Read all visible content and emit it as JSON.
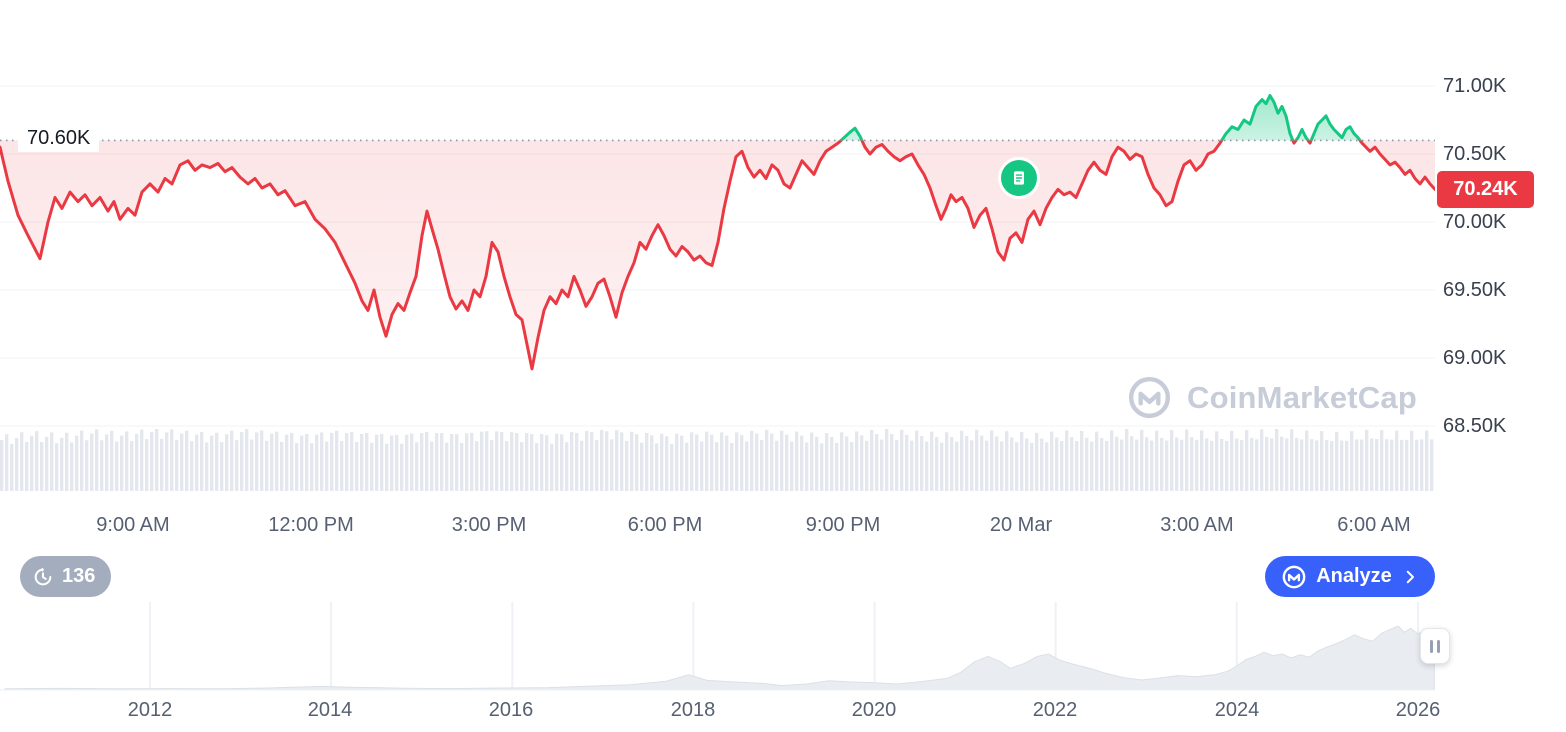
{
  "branding": {
    "watermark": "CoinMarketCap"
  },
  "toolbar": {
    "history_count": "136",
    "analyze_label": "Analyze"
  },
  "colors": {
    "red": "#ea3943",
    "green": "#16c784",
    "blue": "#3861fb",
    "badge_gray": "#a4adbd",
    "volume_gray": "#e4e8ee",
    "nav_fill": "#e9edf1",
    "axis_text": "#566072",
    "watermark_gray": "#c6ccd8"
  },
  "chart_data": [
    {
      "type": "line",
      "name": "price-intraday",
      "title": "",
      "xlabel": "",
      "ylabel": "",
      "grid": "horizontal-faint",
      "baseline_value": 70.6,
      "baseline_label": "70.60K",
      "last_value": 70.24,
      "last_label": "70.24K",
      "ylim": [
        68.35,
        71.15
      ],
      "y_ticks": [
        "71.00K",
        "70.50K",
        "70.00K",
        "69.50K",
        "69.00K",
        "68.50K"
      ],
      "y_tick_values": [
        71.0,
        70.5,
        70.0,
        69.5,
        69.0,
        68.5
      ],
      "x_ticks": [
        "9:00 AM",
        "12:00 PM",
        "3:00 PM",
        "6:00 PM",
        "9:00 PM",
        "20 Mar",
        "3:00 AM",
        "6:00 AM"
      ],
      "points": [
        [
          0,
          70.55
        ],
        [
          8,
          70.3
        ],
        [
          18,
          70.05
        ],
        [
          28,
          69.9
        ],
        [
          40,
          69.73
        ],
        [
          48,
          70.0
        ],
        [
          55,
          70.18
        ],
        [
          62,
          70.1
        ],
        [
          70,
          70.22
        ],
        [
          78,
          70.15
        ],
        [
          85,
          70.2
        ],
        [
          92,
          70.12
        ],
        [
          100,
          70.18
        ],
        [
          108,
          70.08
        ],
        [
          114,
          70.15
        ],
        [
          120,
          70.02
        ],
        [
          128,
          70.1
        ],
        [
          135,
          70.05
        ],
        [
          142,
          70.22
        ],
        [
          150,
          70.28
        ],
        [
          158,
          70.22
        ],
        [
          165,
          70.32
        ],
        [
          172,
          70.28
        ],
        [
          180,
          70.42
        ],
        [
          188,
          70.45
        ],
        [
          195,
          70.38
        ],
        [
          202,
          70.42
        ],
        [
          210,
          70.4
        ],
        [
          218,
          70.43
        ],
        [
          225,
          70.37
        ],
        [
          232,
          70.4
        ],
        [
          240,
          70.33
        ],
        [
          248,
          70.28
        ],
        [
          255,
          70.32
        ],
        [
          262,
          70.25
        ],
        [
          270,
          70.28
        ],
        [
          278,
          70.2
        ],
        [
          285,
          70.23
        ],
        [
          295,
          70.12
        ],
        [
          305,
          70.15
        ],
        [
          315,
          70.02
        ],
        [
          325,
          69.95
        ],
        [
          335,
          69.85
        ],
        [
          345,
          69.7
        ],
        [
          355,
          69.55
        ],
        [
          362,
          69.42
        ],
        [
          368,
          69.35
        ],
        [
          374,
          69.5
        ],
        [
          380,
          69.3
        ],
        [
          386,
          69.16
        ],
        [
          392,
          69.32
        ],
        [
          398,
          69.4
        ],
        [
          404,
          69.35
        ],
        [
          410,
          69.48
        ],
        [
          416,
          69.6
        ],
        [
          422,
          69.9
        ],
        [
          427,
          70.08
        ],
        [
          432,
          69.95
        ],
        [
          438,
          69.8
        ],
        [
          444,
          69.62
        ],
        [
          450,
          69.45
        ],
        [
          456,
          69.36
        ],
        [
          462,
          69.42
        ],
        [
          468,
          69.35
        ],
        [
          474,
          69.5
        ],
        [
          480,
          69.45
        ],
        [
          486,
          69.6
        ],
        [
          492,
          69.85
        ],
        [
          498,
          69.78
        ],
        [
          504,
          69.6
        ],
        [
          510,
          69.45
        ],
        [
          516,
          69.32
        ],
        [
          522,
          69.28
        ],
        [
          527,
          69.1
        ],
        [
          532,
          68.92
        ],
        [
          538,
          69.15
        ],
        [
          544,
          69.35
        ],
        [
          550,
          69.45
        ],
        [
          556,
          69.4
        ],
        [
          562,
          69.5
        ],
        [
          568,
          69.45
        ],
        [
          574,
          69.6
        ],
        [
          580,
          69.5
        ],
        [
          586,
          69.38
        ],
        [
          592,
          69.45
        ],
        [
          598,
          69.55
        ],
        [
          604,
          69.58
        ],
        [
          610,
          69.45
        ],
        [
          616,
          69.3
        ],
        [
          622,
          69.48
        ],
        [
          628,
          69.6
        ],
        [
          634,
          69.7
        ],
        [
          640,
          69.85
        ],
        [
          646,
          69.8
        ],
        [
          652,
          69.9
        ],
        [
          658,
          69.98
        ],
        [
          664,
          69.9
        ],
        [
          670,
          69.8
        ],
        [
          676,
          69.75
        ],
        [
          682,
          69.82
        ],
        [
          688,
          69.78
        ],
        [
          694,
          69.72
        ],
        [
          700,
          69.75
        ],
        [
          706,
          69.7
        ],
        [
          712,
          69.68
        ],
        [
          718,
          69.85
        ],
        [
          724,
          70.1
        ],
        [
          730,
          70.3
        ],
        [
          736,
          70.48
        ],
        [
          742,
          70.52
        ],
        [
          748,
          70.4
        ],
        [
          754,
          70.33
        ],
        [
          760,
          70.38
        ],
        [
          766,
          70.32
        ],
        [
          772,
          70.42
        ],
        [
          778,
          70.38
        ],
        [
          784,
          70.28
        ],
        [
          790,
          70.25
        ],
        [
          796,
          70.35
        ],
        [
          802,
          70.45
        ],
        [
          808,
          70.4
        ],
        [
          814,
          70.35
        ],
        [
          820,
          70.45
        ],
        [
          826,
          70.52
        ],
        [
          832,
          70.55
        ],
        [
          838,
          70.58
        ],
        [
          844,
          70.62
        ],
        [
          850,
          70.66
        ],
        [
          855,
          70.69
        ],
        [
          860,
          70.63
        ],
        [
          865,
          70.55
        ],
        [
          870,
          70.5
        ],
        [
          876,
          70.55
        ],
        [
          882,
          70.57
        ],
        [
          888,
          70.52
        ],
        [
          894,
          70.48
        ],
        [
          900,
          70.45
        ],
        [
          906,
          70.48
        ],
        [
          912,
          70.5
        ],
        [
          918,
          70.42
        ],
        [
          924,
          70.35
        ],
        [
          930,
          70.25
        ],
        [
          936,
          70.12
        ],
        [
          941,
          70.02
        ],
        [
          946,
          70.1
        ],
        [
          951,
          70.2
        ],
        [
          956,
          70.15
        ],
        [
          962,
          70.18
        ],
        [
          968,
          70.1
        ],
        [
          974,
          69.96
        ],
        [
          980,
          70.05
        ],
        [
          986,
          70.1
        ],
        [
          992,
          69.95
        ],
        [
          998,
          69.78
        ],
        [
          1004,
          69.72
        ],
        [
          1010,
          69.88
        ],
        [
          1016,
          69.92
        ],
        [
          1022,
          69.85
        ],
        [
          1028,
          70.02
        ],
        [
          1034,
          70.08
        ],
        [
          1040,
          69.98
        ],
        [
          1046,
          70.1
        ],
        [
          1052,
          70.18
        ],
        [
          1058,
          70.24
        ],
        [
          1064,
          70.2
        ],
        [
          1070,
          70.22
        ],
        [
          1076,
          70.18
        ],
        [
          1082,
          70.28
        ],
        [
          1088,
          70.38
        ],
        [
          1094,
          70.44
        ],
        [
          1100,
          70.38
        ],
        [
          1106,
          70.35
        ],
        [
          1112,
          70.48
        ],
        [
          1118,
          70.55
        ],
        [
          1124,
          70.52
        ],
        [
          1130,
          70.46
        ],
        [
          1136,
          70.5
        ],
        [
          1142,
          70.48
        ],
        [
          1148,
          70.35
        ],
        [
          1154,
          70.25
        ],
        [
          1160,
          70.2
        ],
        [
          1166,
          70.12
        ],
        [
          1172,
          70.15
        ],
        [
          1178,
          70.3
        ],
        [
          1184,
          70.42
        ],
        [
          1190,
          70.45
        ],
        [
          1196,
          70.38
        ],
        [
          1202,
          70.42
        ],
        [
          1208,
          70.5
        ],
        [
          1214,
          70.52
        ],
        [
          1220,
          70.58
        ],
        [
          1226,
          70.65
        ],
        [
          1232,
          70.7
        ],
        [
          1238,
          70.68
        ],
        [
          1244,
          70.75
        ],
        [
          1250,
          70.72
        ],
        [
          1256,
          70.85
        ],
        [
          1262,
          70.9
        ],
        [
          1266,
          70.87
        ],
        [
          1270,
          70.93
        ],
        [
          1274,
          70.88
        ],
        [
          1278,
          70.8
        ],
        [
          1282,
          70.85
        ],
        [
          1286,
          70.78
        ],
        [
          1290,
          70.65
        ],
        [
          1294,
          70.58
        ],
        [
          1298,
          70.62
        ],
        [
          1302,
          70.68
        ],
        [
          1306,
          70.62
        ],
        [
          1310,
          70.58
        ],
        [
          1314,
          70.65
        ],
        [
          1318,
          70.72
        ],
        [
          1322,
          70.75
        ],
        [
          1326,
          70.78
        ],
        [
          1330,
          70.72
        ],
        [
          1334,
          70.68
        ],
        [
          1338,
          70.65
        ],
        [
          1342,
          70.62
        ],
        [
          1346,
          70.68
        ],
        [
          1350,
          70.7
        ],
        [
          1354,
          70.65
        ],
        [
          1358,
          70.62
        ],
        [
          1362,
          70.58
        ],
        [
          1366,
          70.55
        ],
        [
          1370,
          70.52
        ],
        [
          1375,
          70.55
        ],
        [
          1380,
          70.5
        ],
        [
          1385,
          70.46
        ],
        [
          1390,
          70.42
        ],
        [
          1395,
          70.44
        ],
        [
          1400,
          70.4
        ],
        [
          1405,
          70.35
        ],
        [
          1410,
          70.38
        ],
        [
          1415,
          70.32
        ],
        [
          1420,
          70.28
        ],
        [
          1425,
          70.33
        ],
        [
          1430,
          70.28
        ],
        [
          1435,
          70.24
        ]
      ],
      "volume_relative": [
        0.5,
        0.62,
        0.55,
        0.68,
        0.6,
        0.72,
        0.65,
        0.58,
        0.7,
        0.63,
        0.56,
        0.66,
        0.6,
        0.55,
        0.64,
        0.58,
        0.68,
        0.62,
        0.56,
        0.65,
        0.7,
        0.6,
        0.55,
        0.63,
        0.58,
        0.67,
        0.62,
        0.56,
        0.6,
        0.68,
        0.63,
        0.57,
        0.65,
        0.6,
        0.55,
        0.62,
        0.58,
        0.66,
        0.6,
        0.64,
        0.58,
        0.62,
        0.67,
        0.6,
        0.56,
        0.63,
        0.59,
        0.61
      ]
    },
    {
      "type": "area",
      "name": "all-time-overview",
      "title": "",
      "xlabel": "",
      "ylabel": "",
      "grid": "vertical-faint",
      "ylim": [
        0,
        1
      ],
      "x_ticks": [
        "2012",
        "2014",
        "2016",
        "2018",
        "2020",
        "2022",
        "2024",
        "2026"
      ],
      "points": [
        [
          2010.4,
          0.015
        ],
        [
          2011,
          0.02
        ],
        [
          2011.6,
          0.015
        ],
        [
          2012.2,
          0.018
        ],
        [
          2012.8,
          0.015
        ],
        [
          2013.3,
          0.025
        ],
        [
          2013.9,
          0.045
        ],
        [
          2014.2,
          0.035
        ],
        [
          2014.8,
          0.022
        ],
        [
          2015.3,
          0.018
        ],
        [
          2015.9,
          0.025
        ],
        [
          2016.4,
          0.03
        ],
        [
          2016.9,
          0.05
        ],
        [
          2017.3,
          0.065
        ],
        [
          2017.7,
          0.11
        ],
        [
          2017.95,
          0.19
        ],
        [
          2018.15,
          0.12
        ],
        [
          2018.45,
          0.1
        ],
        [
          2018.75,
          0.085
        ],
        [
          2018.98,
          0.055
        ],
        [
          2019.25,
          0.075
        ],
        [
          2019.5,
          0.115
        ],
        [
          2019.75,
          0.1
        ],
        [
          2020.0,
          0.09
        ],
        [
          2020.25,
          0.075
        ],
        [
          2020.55,
          0.11
        ],
        [
          2020.8,
          0.145
        ],
        [
          2020.95,
          0.22
        ],
        [
          2021.1,
          0.35
        ],
        [
          2021.25,
          0.42
        ],
        [
          2021.38,
          0.36
        ],
        [
          2021.5,
          0.27
        ],
        [
          2021.65,
          0.33
        ],
        [
          2021.8,
          0.42
        ],
        [
          2021.92,
          0.45
        ],
        [
          2022.05,
          0.37
        ],
        [
          2022.2,
          0.32
        ],
        [
          2022.38,
          0.27
        ],
        [
          2022.55,
          0.21
        ],
        [
          2022.75,
          0.155
        ],
        [
          2022.95,
          0.125
        ],
        [
          2023.15,
          0.15
        ],
        [
          2023.35,
          0.18
        ],
        [
          2023.55,
          0.165
        ],
        [
          2023.75,
          0.19
        ],
        [
          2023.9,
          0.235
        ],
        [
          2024.0,
          0.3
        ],
        [
          2024.1,
          0.38
        ],
        [
          2024.2,
          0.42
        ],
        [
          2024.3,
          0.47
        ],
        [
          2024.4,
          0.43
        ],
        [
          2024.5,
          0.45
        ],
        [
          2024.6,
          0.4
        ],
        [
          2024.7,
          0.44
        ],
        [
          2024.8,
          0.41
        ],
        [
          2024.9,
          0.49
        ],
        [
          2025.0,
          0.54
        ],
        [
          2025.1,
          0.58
        ],
        [
          2025.2,
          0.63
        ],
        [
          2025.3,
          0.69
        ],
        [
          2025.4,
          0.64
        ],
        [
          2025.5,
          0.61
        ],
        [
          2025.6,
          0.71
        ],
        [
          2025.7,
          0.76
        ],
        [
          2025.78,
          0.8
        ],
        [
          2025.85,
          0.72
        ],
        [
          2025.92,
          0.77
        ],
        [
          2026.0,
          0.7
        ],
        [
          2026.08,
          0.74
        ],
        [
          2026.18,
          0.71
        ]
      ]
    }
  ]
}
